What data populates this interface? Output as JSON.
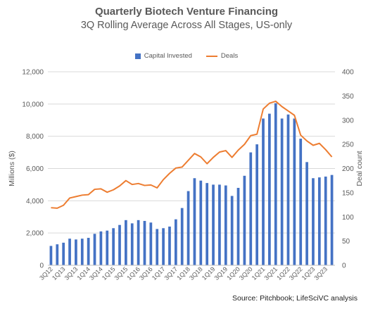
{
  "chart_data": {
    "type": "bar+line",
    "title": "Quarterly Biotech Venture Financing",
    "subtitle": "3Q Rolling Average Across All Stages, US-only",
    "ylabel": "Millions ($)",
    "y2label": "Deal count",
    "ylim": [
      0,
      12000
    ],
    "y2lim": [
      0,
      400
    ],
    "yticks": [
      "0",
      "2,000",
      "4,000",
      "6,000",
      "8,000",
      "10,000",
      "12,000"
    ],
    "y2ticks": [
      "0",
      "50",
      "100",
      "150",
      "200",
      "250",
      "300",
      "350",
      "400"
    ],
    "tick_labels": [
      "3Q12",
      "1Q13",
      "3Q13",
      "1Q14",
      "3Q14",
      "1Q15",
      "3Q15",
      "1Q16",
      "3Q16",
      "1Q17",
      "3Q17",
      "1Q18",
      "3Q18",
      "1Q19",
      "3Q19",
      "1Q20",
      "3Q20",
      "1Q21",
      "3Q21",
      "1Q22",
      "3Q22",
      "1Q23",
      "3Q23"
    ],
    "legend_position": "top",
    "grid": true,
    "series": [
      {
        "name": "Capital Invested",
        "type": "bar",
        "axis": "left",
        "color": "#4472C4",
        "values": [
          1200,
          1300,
          1400,
          1650,
          1600,
          1650,
          1700,
          1950,
          2100,
          2150,
          2300,
          2500,
          2800,
          2600,
          2800,
          2750,
          2650,
          2250,
          2300,
          2400,
          2850,
          3550,
          4600,
          5400,
          5250,
          5100,
          5000,
          5000,
          4950,
          4300,
          4800,
          5550,
          7000,
          7500,
          9100,
          9400,
          10050,
          9100,
          9350,
          9100,
          7850,
          6400,
          5400,
          5450,
          5500,
          5600
        ]
      },
      {
        "name": "Deals",
        "type": "line",
        "axis": "right",
        "color": "#ED7D31",
        "values": [
          119,
          118,
          124,
          139,
          142,
          145,
          146,
          157,
          158,
          151,
          156,
          164,
          175,
          167,
          169,
          165,
          166,
          160,
          177,
          190,
          201,
          203,
          217,
          231,
          224,
          210,
          223,
          234,
          237,
          223,
          238,
          250,
          268,
          271,
          323,
          335,
          339,
          328,
          319,
          310,
          269,
          257,
          248,
          252,
          239,
          224
        ]
      }
    ]
  },
  "source": "Source: Pitchbook; LifeSciVC analysis"
}
